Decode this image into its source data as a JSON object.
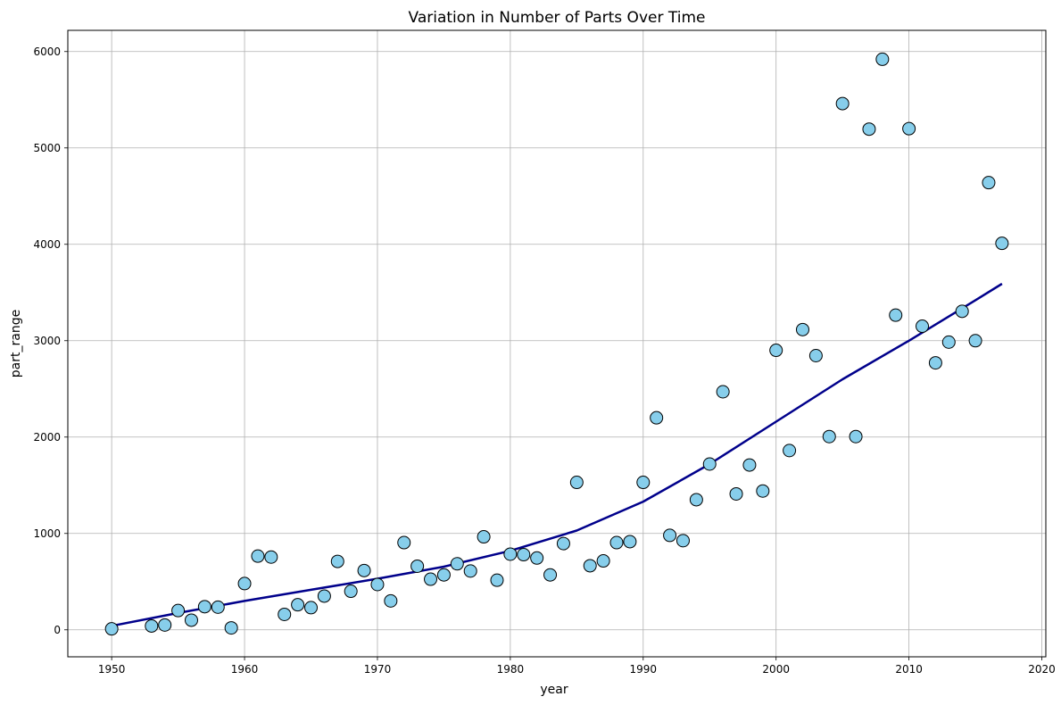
{
  "chart_data": {
    "type": "scatter",
    "title": "Variation in Number of Parts Over Time",
    "xlabel": "year",
    "ylabel": "part_range",
    "xlim": [
      1946.7,
      2020.3
    ],
    "ylim": [
      -280,
      6220
    ],
    "xticks": [
      1950,
      1960,
      1970,
      1980,
      1990,
      2000,
      2010,
      2020
    ],
    "yticks": [
      0,
      1000,
      2000,
      3000,
      4000,
      5000,
      6000
    ],
    "grid": true,
    "colors": {
      "marker_fill": "#87ceeb",
      "marker_edge": "#000000",
      "trend_line": "#00008b",
      "grid": "#b0b0b0"
    },
    "series": [
      {
        "type": "scatter",
        "x": [
          1950,
          1953,
          1954,
          1955,
          1956,
          1957,
          1958,
          1959,
          1960,
          1961,
          1962,
          1963,
          1964,
          1965,
          1966,
          1967,
          1968,
          1969,
          1970,
          1971,
          1972,
          1973,
          1974,
          1975,
          1976,
          1977,
          1978,
          1979,
          1980,
          1981,
          1982,
          1983,
          1984,
          1985,
          1986,
          1987,
          1988,
          1989,
          1990,
          1991,
          1992,
          1993,
          1994,
          1995,
          1996,
          1997,
          1998,
          1999,
          2000,
          2001,
          2002,
          2003,
          2004,
          2005,
          2006,
          2007,
          2008,
          2009,
          2010,
          2011,
          2012,
          2013,
          2014,
          2015,
          2016,
          2017
        ],
        "y": [
          10,
          40,
          50,
          200,
          100,
          240,
          235,
          20,
          480,
          765,
          755,
          160,
          260,
          230,
          350,
          710,
          400,
          615,
          470,
          300,
          905,
          660,
          525,
          570,
          685,
          610,
          965,
          515,
          785,
          780,
          745,
          570,
          895,
          1530,
          665,
          715,
          905,
          915,
          1530,
          2200,
          980,
          925,
          1350,
          1720,
          2470,
          1410,
          1710,
          1440,
          2900,
          1860,
          3115,
          2845,
          2005,
          5460,
          2005,
          5195,
          5920,
          3265,
          5200,
          3150,
          2770,
          2985,
          3305,
          3000,
          4640,
          4010
        ]
      },
      {
        "type": "line",
        "x": [
          1950,
          1955,
          1960,
          1965,
          1970,
          1975,
          1980,
          1985,
          1990,
          1995,
          2000,
          2005,
          2010,
          2015,
          2017
        ],
        "y": [
          40,
          175,
          300,
          415,
          530,
          655,
          820,
          1030,
          1330,
          1720,
          2160,
          2600,
          3000,
          3420,
          3590
        ]
      }
    ]
  }
}
